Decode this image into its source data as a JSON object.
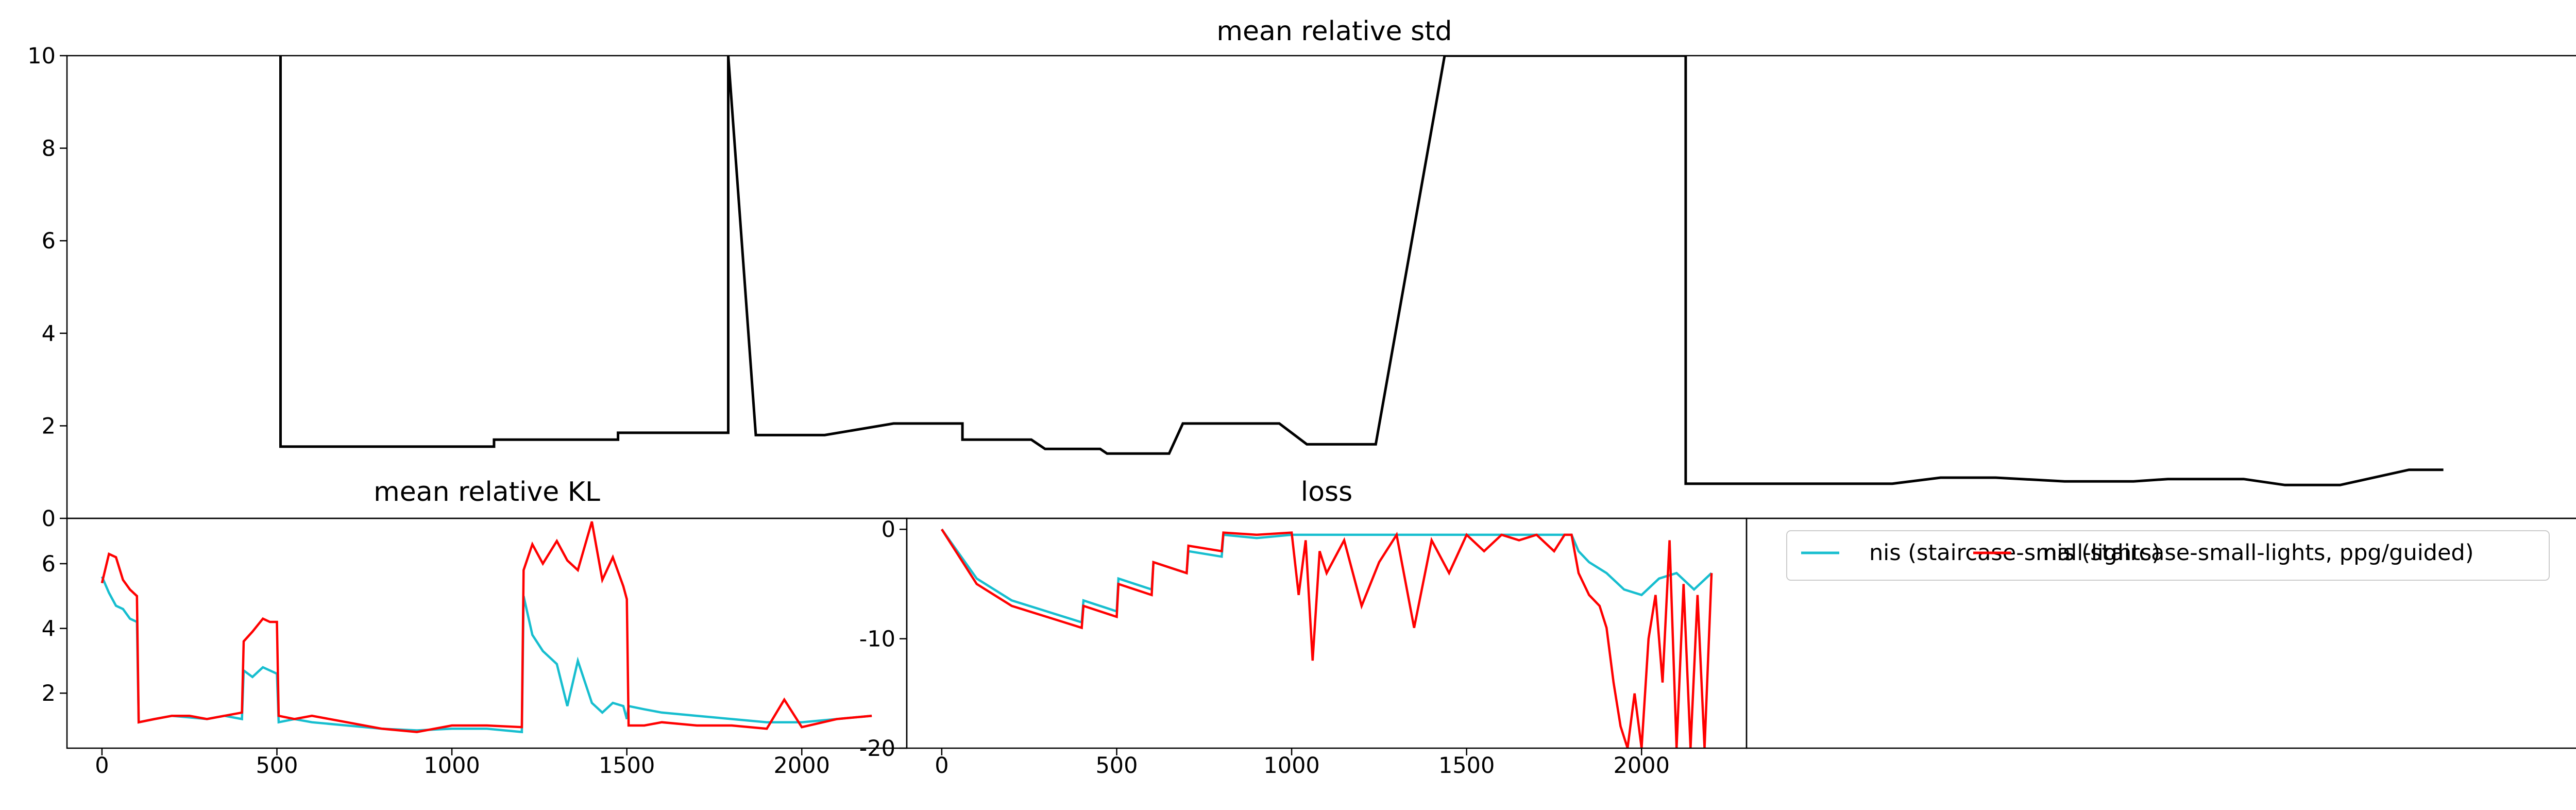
{
  "colors": {
    "black": "#000000",
    "cyan": "#17becf",
    "red": "#ff0000"
  },
  "chart_data": [
    {
      "id": "std",
      "type": "line",
      "title": "mean relative std",
      "xlim": [
        -100,
        3550
      ],
      "ylim": [
        0,
        10
      ],
      "yticks": [
        0,
        2,
        4,
        6,
        8,
        10
      ],
      "xticks": [],
      "series": [
        {
          "color": "#000000",
          "x": [
            210,
            210,
            400,
            520,
            520,
            600,
            700,
            700,
            800,
            860,
            860,
            900,
            1000,
            1100,
            1140,
            1200,
            1200,
            1300,
            1320,
            1400,
            1410,
            1410,
            1420,
            1500,
            1520,
            1660,
            1700,
            1800,
            1900,
            2000,
            2100,
            2180,
            2250,
            2250,
            2300,
            2400,
            2500,
            2550,
            2620,
            2700,
            2800,
            2900,
            2950,
            3060,
            3120,
            3200,
            3300,
            3350
          ],
          "y": [
            10,
            1.55,
            1.55,
            1.55,
            1.7,
            1.7,
            1.7,
            1.85,
            1.85,
            1.85,
            10,
            1.8,
            1.8,
            2.05,
            2.05,
            2.05,
            1.7,
            1.7,
            1.5,
            1.5,
            1.4,
            1.4,
            1.4,
            1.4,
            2.05,
            2.05,
            1.6,
            1.6,
            10,
            10,
            10,
            10,
            10,
            0.75,
            0.75,
            0.75,
            0.75,
            0.75,
            0.88,
            0.88,
            0.8,
            0.8,
            0.85,
            0.85,
            0.72,
            0.72,
            1.05,
            1.05
          ]
        }
      ]
    },
    {
      "id": "kl",
      "type": "line",
      "title": "mean relative KL",
      "xlim": [
        -100,
        2300
      ],
      "ylim": [
        0.3,
        7.4
      ],
      "yticks": [
        2,
        4,
        6
      ],
      "xticks": [
        0,
        500,
        1000,
        1500,
        2000
      ],
      "series": [
        {
          "color": "#17becf",
          "x": [
            0,
            20,
            40,
            60,
            80,
            100,
            105,
            150,
            200,
            250,
            300,
            350,
            400,
            405,
            430,
            460,
            500,
            505,
            550,
            600,
            700,
            800,
            900,
            1000,
            1100,
            1200,
            1205,
            1230,
            1260,
            1300,
            1330,
            1360,
            1400,
            1430,
            1460,
            1490,
            1500,
            1505,
            1550,
            1600,
            1700,
            1800,
            1900,
            2000,
            2100,
            2200
          ],
          "y": [
            5.6,
            5.1,
            4.7,
            4.6,
            4.3,
            4.2,
            1.1,
            1.2,
            1.3,
            1.25,
            1.2,
            1.3,
            1.2,
            2.7,
            2.5,
            2.8,
            2.6,
            1.1,
            1.2,
            1.1,
            1.0,
            0.9,
            0.85,
            0.9,
            0.9,
            0.8,
            5.0,
            3.8,
            3.3,
            2.9,
            1.6,
            3.0,
            1.7,
            1.4,
            1.7,
            1.6,
            1.2,
            1.6,
            1.5,
            1.4,
            1.3,
            1.2,
            1.1,
            1.1,
            1.2,
            1.3
          ]
        },
        {
          "color": "#ff0000",
          "x": [
            0,
            20,
            40,
            60,
            80,
            100,
            105,
            150,
            200,
            250,
            300,
            350,
            400,
            405,
            430,
            460,
            480,
            500,
            505,
            550,
            600,
            700,
            800,
            900,
            1000,
            1100,
            1200,
            1205,
            1230,
            1260,
            1300,
            1330,
            1360,
            1400,
            1430,
            1460,
            1490,
            1500,
            1505,
            1550,
            1600,
            1700,
            1800,
            1900,
            1950,
            2000,
            2100,
            2200
          ],
          "y": [
            5.4,
            6.3,
            6.2,
            5.5,
            5.2,
            5.0,
            1.1,
            1.2,
            1.3,
            1.3,
            1.2,
            1.3,
            1.4,
            3.6,
            3.9,
            4.3,
            4.2,
            4.2,
            1.3,
            1.2,
            1.3,
            1.1,
            0.9,
            0.8,
            1.0,
            1.0,
            0.95,
            5.8,
            6.6,
            6.0,
            6.7,
            6.1,
            5.8,
            7.3,
            5.5,
            6.2,
            5.3,
            4.9,
            1.0,
            1.0,
            1.1,
            1.0,
            1.0,
            0.9,
            1.8,
            0.95,
            1.2,
            1.3
          ]
        }
      ]
    },
    {
      "id": "loss",
      "type": "line",
      "title": "loss",
      "xlim": [
        -100,
        2300
      ],
      "ylim": [
        -20,
        1
      ],
      "yticks": [
        0,
        -10,
        -20
      ],
      "xticks": [
        0,
        500,
        1000,
        1500,
        2000
      ],
      "series": [
        {
          "color": "#17becf",
          "x": [
            0,
            100,
            200,
            300,
            400,
            405,
            500,
            505,
            600,
            605,
            700,
            705,
            800,
            805,
            900,
            1000,
            1100,
            1200,
            1300,
            1400,
            1500,
            1600,
            1700,
            1800,
            1820,
            1850,
            1900,
            1950,
            2000,
            2050,
            2100,
            2150,
            2200
          ],
          "y": [
            0,
            -4.5,
            -6.5,
            -7.5,
            -8.5,
            -6.5,
            -7.5,
            -4.5,
            -5.5,
            -3,
            -4,
            -2,
            -2.5,
            -0.5,
            -0.8,
            -0.5,
            -0.5,
            -0.5,
            -0.5,
            -0.5,
            -0.5,
            -0.5,
            -0.5,
            -0.5,
            -2.0,
            -3.0,
            -4.0,
            -5.5,
            -6.0,
            -4.5,
            -4.0,
            -5.5,
            -4.0
          ]
        },
        {
          "color": "#ff0000",
          "x": [
            0,
            100,
            200,
            300,
            400,
            405,
            500,
            505,
            600,
            605,
            700,
            705,
            800,
            805,
            900,
            1000,
            1020,
            1040,
            1060,
            1080,
            1100,
            1150,
            1200,
            1250,
            1300,
            1350,
            1400,
            1450,
            1500,
            1550,
            1600,
            1650,
            1700,
            1750,
            1780,
            1800,
            1820,
            1850,
            1880,
            1900,
            1920,
            1940,
            1960,
            1980,
            2000,
            2020,
            2040,
            2060,
            2080,
            2100,
            2120,
            2140,
            2160,
            2180,
            2200
          ],
          "y": [
            0,
            -5,
            -7,
            -8,
            -9,
            -7,
            -8,
            -5,
            -6,
            -3,
            -4,
            -1.5,
            -2,
            -0.3,
            -0.5,
            -0.3,
            -6,
            -1,
            -12,
            -2,
            -4,
            -1,
            -7,
            -3,
            -0.5,
            -9,
            -1,
            -4,
            -0.5,
            -2,
            -0.5,
            -1,
            -0.5,
            -2,
            -0.5,
            -0.5,
            -4,
            -6,
            -7,
            -9,
            -14,
            -18,
            -20,
            -15,
            -20,
            -10,
            -6,
            -14,
            -1,
            -20,
            -5,
            -20,
            -6,
            -20,
            -4
          ]
        }
      ]
    },
    {
      "id": "legend",
      "type": "line",
      "legend": [
        {
          "label": "nis (staircase-small-lights)",
          "color": "#17becf"
        },
        {
          "label": "nis (staircase-small-lights, ppg/guided)",
          "color": "#ff0000"
        }
      ]
    }
  ]
}
